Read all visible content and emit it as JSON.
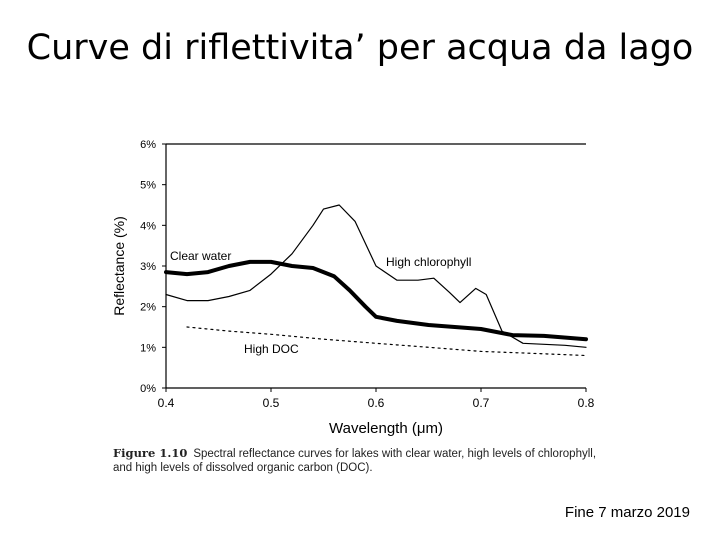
{
  "slide": {
    "title": "Curve di riflettivita’ per acqua da lago",
    "footer": "Fine 7 marzo 2019"
  },
  "caption": {
    "figure_label": "Figure 1.10",
    "text": "Spectral reflectance curves for lakes with clear water, high levels of chlorophyll, and high levels of dissolved organic carbon (DOC)."
  },
  "colors": {
    "line": "#000000",
    "background": "#ffffff"
  },
  "chart_data": {
    "type": "line",
    "title": "",
    "xlabel": "Wavelength (μm)",
    "ylabel": "Reflectance (%)",
    "xlim": [
      0.4,
      0.8
    ],
    "ylim": [
      0,
      6
    ],
    "xticks": [
      0.4,
      0.5,
      0.6,
      0.7,
      0.8
    ],
    "xtick_labels": [
      "0.4",
      "0.5",
      "0.6",
      "0.7",
      "0.8"
    ],
    "yticks": [
      0,
      1,
      2,
      3,
      4,
      5,
      6
    ],
    "ytick_labels": [
      "0%",
      "1%",
      "2%",
      "3%",
      "4%",
      "5%",
      "6%"
    ],
    "series": [
      {
        "name": "Clear water",
        "style": "thick",
        "x": [
          0.4,
          0.42,
          0.44,
          0.46,
          0.48,
          0.5,
          0.52,
          0.54,
          0.56,
          0.575,
          0.59,
          0.6,
          0.62,
          0.65,
          0.7,
          0.73,
          0.76,
          0.8
        ],
        "y": [
          2.85,
          2.8,
          2.85,
          3.0,
          3.1,
          3.1,
          3.0,
          2.95,
          2.75,
          2.4,
          2.0,
          1.75,
          1.65,
          1.55,
          1.45,
          1.3,
          1.28,
          1.2
        ]
      },
      {
        "name": "High chlorophyll",
        "style": "thin",
        "x": [
          0.4,
          0.42,
          0.44,
          0.46,
          0.48,
          0.5,
          0.52,
          0.54,
          0.55,
          0.565,
          0.58,
          0.6,
          0.62,
          0.64,
          0.655,
          0.67,
          0.68,
          0.695,
          0.705,
          0.72,
          0.74,
          0.78,
          0.8
        ],
        "y": [
          2.3,
          2.15,
          2.15,
          2.25,
          2.4,
          2.8,
          3.3,
          4.0,
          4.4,
          4.5,
          4.1,
          3.0,
          2.65,
          2.65,
          2.7,
          2.35,
          2.1,
          2.45,
          2.3,
          1.4,
          1.1,
          1.05,
          1.0
        ]
      },
      {
        "name": "High DOC",
        "style": "dotted",
        "x": [
          0.42,
          0.46,
          0.5,
          0.55,
          0.6,
          0.65,
          0.7,
          0.75,
          0.8
        ],
        "y": [
          1.5,
          1.4,
          1.32,
          1.2,
          1.1,
          1.0,
          0.9,
          0.85,
          0.8
        ]
      }
    ],
    "annotations": [
      {
        "text": "Clear water",
        "series": "Clear water"
      },
      {
        "text": "High chlorophyll",
        "series": "High chlorophyll"
      },
      {
        "text": "High DOC",
        "series": "High DOC"
      }
    ]
  }
}
